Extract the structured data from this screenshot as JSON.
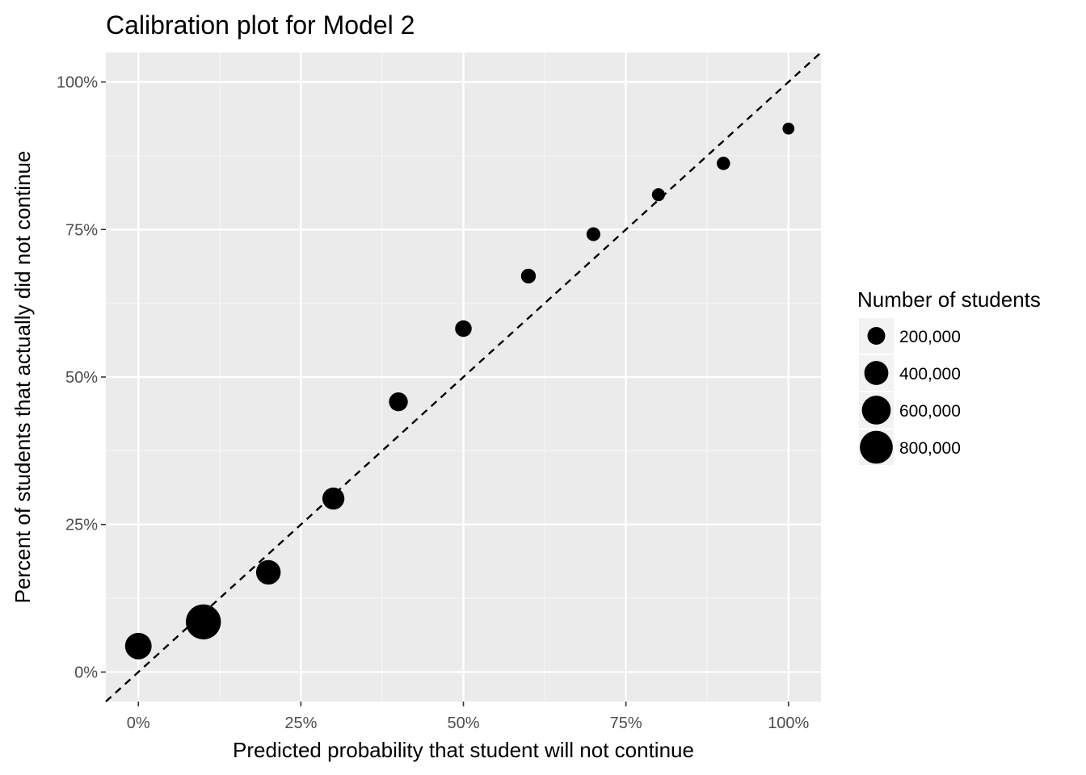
{
  "chart_data": {
    "type": "scatter",
    "title": "Calibration plot for Model 2",
    "xlabel": "Predicted probability that student will not continue",
    "ylabel": "Percent of students that actually did not continue",
    "xlim": [
      -0.05,
      1.05
    ],
    "ylim": [
      -0.05,
      1.05
    ],
    "x_ticks": [
      {
        "value": 0,
        "label": "0%"
      },
      {
        "value": 0.25,
        "label": "25%"
      },
      {
        "value": 0.5,
        "label": "50%"
      },
      {
        "value": 0.75,
        "label": "75%"
      },
      {
        "value": 1,
        "label": "100%"
      }
    ],
    "y_ticks": [
      {
        "value": 0,
        "label": "0%"
      },
      {
        "value": 0.25,
        "label": "25%"
      },
      {
        "value": 0.5,
        "label": "50%"
      },
      {
        "value": 0.75,
        "label": "75%"
      },
      {
        "value": 1,
        "label": "100%"
      }
    ],
    "grid": true,
    "reference_line": {
      "style": "dashed",
      "slope": 1,
      "intercept": 0,
      "color": "#000000"
    },
    "points": [
      {
        "x": 0.0,
        "y": 0.044,
        "students": 500000
      },
      {
        "x": 0.1,
        "y": 0.085,
        "students": 920000
      },
      {
        "x": 0.2,
        "y": 0.169,
        "students": 420000
      },
      {
        "x": 0.3,
        "y": 0.294,
        "students": 330000
      },
      {
        "x": 0.4,
        "y": 0.458,
        "students": 230000
      },
      {
        "x": 0.5,
        "y": 0.582,
        "students": 170000
      },
      {
        "x": 0.6,
        "y": 0.671,
        "students": 130000
      },
      {
        "x": 0.7,
        "y": 0.742,
        "students": 110000
      },
      {
        "x": 0.8,
        "y": 0.809,
        "students": 95000
      },
      {
        "x": 0.9,
        "y": 0.862,
        "students": 100000
      },
      {
        "x": 1.0,
        "y": 0.921,
        "students": 75000
      }
    ],
    "size_legend": {
      "title": "Number of students",
      "placement": "right",
      "entries": [
        {
          "value": 200000,
          "label": "200,000"
        },
        {
          "value": 400000,
          "label": "400,000"
        },
        {
          "value": 600000,
          "label": "600,000"
        },
        {
          "value": 800000,
          "label": "800,000"
        }
      ]
    },
    "colors": {
      "panel": "#ebebeb",
      "grid_major": "#ffffff",
      "grid_minor": "#f5f5f5",
      "point": "#000000",
      "tick_text": "#4d4d4d"
    }
  }
}
